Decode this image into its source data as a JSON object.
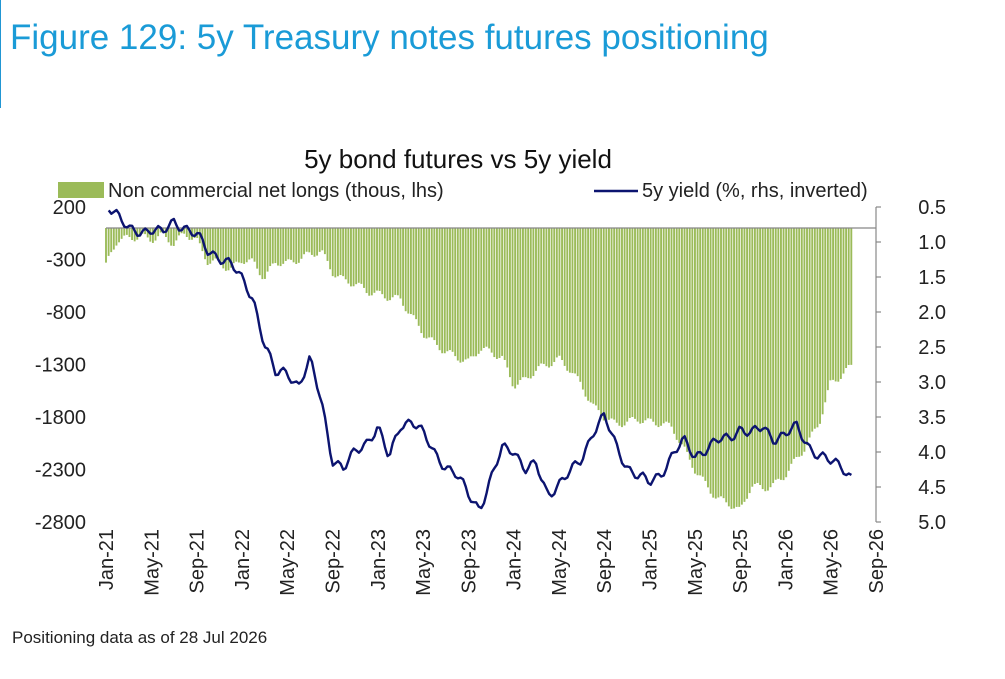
{
  "figure_title": "Figure 129: 5y Treasury notes futures positioning",
  "footnote": "Positioning data as of 28 Jul 2026",
  "colors": {
    "title": "#1a9bd7",
    "bars": "#9bbb59",
    "line": "#0c1470",
    "axis": "#888888"
  },
  "chart_data": {
    "type": "bar+line",
    "title": "5y bond futures vs 5y yield",
    "legend_position": "top",
    "grid": false,
    "x_tick_labels": [
      "Jan-21",
      "May-21",
      "Sep-21",
      "Jan-22",
      "May-22",
      "Sep-22",
      "Jan-23",
      "May-23",
      "Sep-23",
      "Jan-24",
      "May-24",
      "Sep-24",
      "Jan-25",
      "May-25",
      "Sep-25",
      "Jan-26",
      "May-26",
      "Sep-26"
    ],
    "left_axis": {
      "ticks": [
        200,
        -300,
        -800,
        -1300,
        -1800,
        -2300,
        -2800
      ],
      "ylim": [
        -2800,
        200
      ]
    },
    "right_axis": {
      "ticks": [
        "0.5",
        "1.0",
        "1.5",
        "2.0",
        "2.5",
        "3.0",
        "3.5",
        "4.0",
        "4.5",
        "5.0"
      ],
      "ylim": [
        0.5,
        5.0
      ],
      "inverted": true
    },
    "series": [
      {
        "name": "Non commercial net longs (thous, lhs)",
        "kind": "bar",
        "axis": "left",
        "points": [
          [
            "2021-01",
            -360
          ],
          [
            "2021-02",
            -110
          ],
          [
            "2021-03",
            -100
          ],
          [
            "2021-04",
            -80
          ],
          [
            "2021-05",
            -110
          ],
          [
            "2021-06",
            -70
          ],
          [
            "2021-07",
            -150
          ],
          [
            "2021-08",
            -50
          ],
          [
            "2021-09",
            -120
          ],
          [
            "2021-10",
            -320
          ],
          [
            "2021-11",
            -330
          ],
          [
            "2021-12",
            -400
          ],
          [
            "2022-01",
            -300
          ],
          [
            "2022-02",
            -330
          ],
          [
            "2022-03",
            -480
          ],
          [
            "2022-04",
            -320
          ],
          [
            "2022-05",
            -340
          ],
          [
            "2022-06",
            -300
          ],
          [
            "2022-07",
            -250
          ],
          [
            "2022-08",
            -220
          ],
          [
            "2022-09",
            -420
          ],
          [
            "2022-10",
            -500
          ],
          [
            "2022-11",
            -530
          ],
          [
            "2022-12",
            -600
          ],
          [
            "2023-01",
            -630
          ],
          [
            "2023-02",
            -660
          ],
          [
            "2023-03",
            -680
          ],
          [
            "2023-04",
            -840
          ],
          [
            "2023-05",
            -1000
          ],
          [
            "2023-06",
            -1100
          ],
          [
            "2023-07",
            -1180
          ],
          [
            "2023-08",
            -1230
          ],
          [
            "2023-09",
            -1280
          ],
          [
            "2023-10",
            -1150
          ],
          [
            "2023-11",
            -1180
          ],
          [
            "2023-12",
            -1240
          ],
          [
            "2024-01",
            -1500
          ],
          [
            "2024-02",
            -1450
          ],
          [
            "2024-03",
            -1350
          ],
          [
            "2024-04",
            -1300
          ],
          [
            "2024-05",
            -1250
          ],
          [
            "2024-06",
            -1350
          ],
          [
            "2024-07",
            -1500
          ],
          [
            "2024-08",
            -1700
          ],
          [
            "2024-09",
            -1800
          ],
          [
            "2024-10",
            -1870
          ],
          [
            "2024-11",
            -1850
          ],
          [
            "2024-12",
            -1820
          ],
          [
            "2025-01",
            -1850
          ],
          [
            "2025-02",
            -1860
          ],
          [
            "2025-03",
            -1900
          ],
          [
            "2025-04",
            -2100
          ],
          [
            "2025-05",
            -2300
          ],
          [
            "2025-06",
            -2450
          ],
          [
            "2025-07",
            -2580
          ],
          [
            "2025-08",
            -2620
          ],
          [
            "2025-09",
            -2700
          ],
          [
            "2025-10",
            -2450
          ],
          [
            "2025-11",
            -2480
          ],
          [
            "2025-12",
            -2450
          ],
          [
            "2026-01",
            -2350
          ],
          [
            "2026-02",
            -2200
          ],
          [
            "2026-03",
            -2050
          ],
          [
            "2026-04",
            -1850
          ],
          [
            "2026-05",
            -1480
          ],
          [
            "2026-06",
            -1400
          ],
          [
            "2026-07",
            -1300
          ]
        ]
      },
      {
        "name": "5y yield (%, rhs, inverted)",
        "kind": "line",
        "axis": "right",
        "points": [
          [
            "2021-01",
            0.42
          ],
          [
            "2021-02",
            0.6
          ],
          [
            "2021-03",
            0.85
          ],
          [
            "2021-04",
            0.85
          ],
          [
            "2021-05",
            0.8
          ],
          [
            "2021-06",
            0.88
          ],
          [
            "2021-07",
            0.72
          ],
          [
            "2021-08",
            0.78
          ],
          [
            "2021-09",
            0.9
          ],
          [
            "2021-10",
            1.15
          ],
          [
            "2021-11",
            1.2
          ],
          [
            "2021-12",
            1.3
          ],
          [
            "2022-01",
            1.55
          ],
          [
            "2022-02",
            1.8
          ],
          [
            "2022-03",
            2.45
          ],
          [
            "2022-04",
            2.9
          ],
          [
            "2022-05",
            2.85
          ],
          [
            "2022-06",
            3.05
          ],
          [
            "2022-07",
            2.7
          ],
          [
            "2022-08",
            3.25
          ],
          [
            "2022-09",
            4.1
          ],
          [
            "2022-10",
            4.25
          ],
          [
            "2022-11",
            4.0
          ],
          [
            "2022-12",
            3.85
          ],
          [
            "2023-01",
            3.65
          ],
          [
            "2023-02",
            4.1
          ],
          [
            "2023-03",
            3.6
          ],
          [
            "2023-04",
            3.55
          ],
          [
            "2023-05",
            3.75
          ],
          [
            "2023-06",
            4.0
          ],
          [
            "2023-07",
            4.2
          ],
          [
            "2023-08",
            4.35
          ],
          [
            "2023-09",
            4.6
          ],
          [
            "2023-10",
            4.8
          ],
          [
            "2023-11",
            4.4
          ],
          [
            "2023-12",
            3.95
          ],
          [
            "2024-01",
            3.95
          ],
          [
            "2024-02",
            4.25
          ],
          [
            "2024-03",
            4.2
          ],
          [
            "2024-04",
            4.6
          ],
          [
            "2024-05",
            4.45
          ],
          [
            "2024-06",
            4.3
          ],
          [
            "2024-07",
            4.1
          ],
          [
            "2024-08",
            3.7
          ],
          [
            "2024-09",
            3.5
          ],
          [
            "2024-10",
            3.9
          ],
          [
            "2024-11",
            4.2
          ],
          [
            "2024-12",
            4.35
          ],
          [
            "2025-01",
            4.45
          ],
          [
            "2025-02",
            4.3
          ],
          [
            "2025-03",
            4.05
          ],
          [
            "2025-04",
            3.85
          ],
          [
            "2025-05",
            4.05
          ],
          [
            "2025-06",
            3.95
          ],
          [
            "2025-07",
            3.85
          ],
          [
            "2025-08",
            3.8
          ],
          [
            "2025-09",
            3.65
          ],
          [
            "2025-10",
            3.75
          ],
          [
            "2025-11",
            3.65
          ],
          [
            "2025-12",
            3.8
          ],
          [
            "2026-01",
            3.75
          ],
          [
            "2026-02",
            3.65
          ],
          [
            "2026-03",
            3.9
          ],
          [
            "2026-04",
            4.05
          ],
          [
            "2026-05",
            4.15
          ],
          [
            "2026-06",
            4.2
          ],
          [
            "2026-07",
            4.38
          ]
        ]
      }
    ]
  }
}
